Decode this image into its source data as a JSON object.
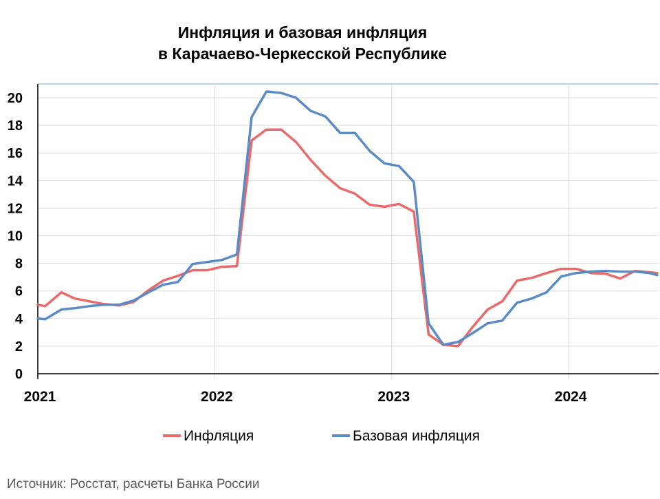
{
  "chart_data": {
    "type": "line",
    "title": "Инфляция и базовая инфляция",
    "subtitle": "в Карачаево-Черкесской Республике",
    "source": "Источник: Росстат, расчеты Банка России",
    "ylim": [
      0,
      21
    ],
    "yticks": [
      "0",
      "2",
      "4",
      "6",
      "8",
      "10",
      "12",
      "14",
      "16",
      "18",
      "20"
    ],
    "xlim": [
      0,
      42.1
    ],
    "xticks": [
      {
        "value": 0,
        "label": "2021"
      },
      {
        "value": 12,
        "label": "2022"
      },
      {
        "value": 24,
        "label": "2023"
      },
      {
        "value": 36,
        "label": "2024"
      }
    ],
    "grid": true,
    "legend": "bottom",
    "series": [
      {
        "name": "Инфляция",
        "color": "#E96A6B",
        "x": [
          0,
          0.5,
          1.6,
          2.5,
          3.5,
          4.5,
          5.5,
          6.5,
          7.5,
          8.5,
          9.5,
          10.5,
          11.5,
          12.5,
          13.5,
          14.5,
          15.5,
          16.5,
          17.5,
          18.5,
          19.5,
          20.5,
          21.5,
          22.5,
          23.5,
          24.5,
          25.5,
          26.5,
          27.5,
          28.5,
          29.5,
          30.5,
          31.5,
          32.5,
          33.5,
          34.5,
          35.5,
          36.5,
          37.5,
          38.5,
          39.5,
          40.5,
          41.5,
          42
        ],
        "values": [
          5.0,
          4.9,
          5.9,
          5.45,
          5.25,
          5.05,
          4.95,
          5.2,
          6.05,
          6.75,
          7.1,
          7.5,
          7.5,
          7.75,
          7.8,
          16.9,
          17.7,
          17.7,
          16.8,
          15.5,
          14.35,
          13.45,
          13.05,
          12.25,
          12.1,
          12.3,
          11.75,
          2.85,
          2.1,
          2.0,
          3.4,
          4.65,
          5.25,
          6.75,
          6.95,
          7.3,
          7.6,
          7.6,
          7.3,
          7.25,
          6.9,
          7.45,
          7.35,
          7.3
        ]
      },
      {
        "name": "Базовая инфляция",
        "color": "#5B8BC6",
        "x": [
          0,
          0.5,
          1.6,
          2.5,
          3.5,
          4.5,
          5.5,
          6.5,
          7.5,
          8.5,
          9.5,
          10.5,
          11.5,
          12.5,
          13.5,
          14.5,
          15.5,
          16.5,
          17.5,
          18.5,
          19.5,
          20.5,
          21.5,
          22.5,
          23.5,
          24.5,
          25.5,
          26.5,
          27.5,
          28.5,
          29.5,
          30.5,
          31.5,
          32.5,
          33.5,
          34.5,
          35.5,
          36.5,
          37.5,
          38.5,
          39.5,
          40.5,
          41.5,
          42
        ],
        "values": [
          4.0,
          3.95,
          4.65,
          4.75,
          4.9,
          5.0,
          5.0,
          5.3,
          5.9,
          6.45,
          6.65,
          7.95,
          8.1,
          8.25,
          8.65,
          18.6,
          20.45,
          20.35,
          20.0,
          19.05,
          18.65,
          17.45,
          17.45,
          16.15,
          15.25,
          15.05,
          13.9,
          3.65,
          2.1,
          2.3,
          2.95,
          3.65,
          3.85,
          5.15,
          5.45,
          5.9,
          7.05,
          7.3,
          7.4,
          7.45,
          7.4,
          7.4,
          7.3,
          7.15
        ]
      }
    ]
  }
}
